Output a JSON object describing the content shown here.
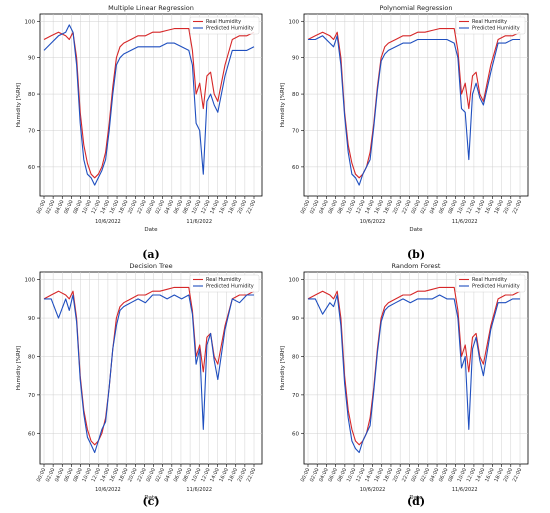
{
  "colors": {
    "real": "#d62728",
    "pred": "#1f4fbf",
    "grid": "#d0d0d0"
  },
  "chart_data": [
    {
      "type": "line",
      "caption": "(a)",
      "title": "Multiple Linear Regression",
      "xlabel": "Date",
      "ylabel": "Humidity [%RH]",
      "ylim": [
        52,
        102
      ],
      "yticks": [
        60,
        70,
        80,
        90,
        100
      ],
      "legend": "top-right",
      "grid": true,
      "xtick_labels": [
        "00:00",
        "02:00",
        "04:00",
        "06:00",
        "08:00",
        "10:00",
        "12:00",
        "14:00",
        "16:00",
        "18:00",
        "20:00",
        "22:00",
        "00:00",
        "02:00",
        "04:00",
        "06:00",
        "08:00",
        "10:00",
        "12:00",
        "14:00",
        "16:00",
        "18:00",
        "20:00",
        "22:00"
      ],
      "date_labels": [
        {
          "label": "10/6/2022",
          "index": 7
        },
        {
          "label": "11/6/2022",
          "index": 17
        }
      ],
      "x": [
        0,
        2,
        4,
        6,
        7,
        8,
        9,
        10,
        11,
        12,
        13,
        14,
        15,
        16,
        17,
        18,
        19,
        20,
        21,
        22,
        24,
        26,
        28,
        30,
        32,
        34,
        36,
        38,
        40,
        41,
        42,
        43,
        44,
        45,
        46,
        47,
        48,
        50,
        52,
        54,
        56,
        58
      ],
      "series": [
        {
          "name": "Real Humidity",
          "values": [
            95,
            96,
            97,
            96,
            95,
            97,
            90,
            75,
            66,
            61,
            58,
            57,
            58,
            60,
            64,
            72,
            82,
            90,
            93,
            94,
            95,
            96,
            96,
            97,
            97,
            97.5,
            98,
            98,
            98,
            92,
            80,
            83,
            76,
            85,
            86,
            80,
            78,
            88,
            95,
            96,
            96,
            97
          ]
        },
        {
          "name": "Predicted Humidity",
          "values": [
            92,
            94,
            96,
            97,
            99,
            97,
            88,
            72,
            62,
            58,
            57,
            55,
            57,
            59,
            62,
            70,
            80,
            88,
            90,
            91,
            92,
            93,
            93,
            93,
            93,
            94,
            94,
            93,
            92,
            88,
            72,
            70,
            58,
            78,
            80,
            77,
            75,
            85,
            92,
            92,
            92,
            93
          ]
        }
      ]
    },
    {
      "type": "line",
      "caption": "(b)",
      "title": "Polynomial Regression",
      "xlabel": "Date",
      "ylabel": "Humidity [%RH]",
      "ylim": [
        52,
        102
      ],
      "yticks": [
        60,
        70,
        80,
        90,
        100
      ],
      "legend": "top-right",
      "grid": true,
      "xtick_labels": [
        "00:00",
        "02:00",
        "04:00",
        "06:00",
        "08:00",
        "10:00",
        "12:00",
        "14:00",
        "16:00",
        "18:00",
        "20:00",
        "22:00",
        "00:00",
        "02:00",
        "04:00",
        "06:00",
        "08:00",
        "10:00",
        "12:00",
        "14:00",
        "16:00",
        "18:00",
        "20:00",
        "22:00"
      ],
      "date_labels": [
        {
          "label": "10/6/2022",
          "index": 7
        },
        {
          "label": "11/6/2022",
          "index": 17
        }
      ],
      "x": [
        0,
        2,
        4,
        6,
        7,
        8,
        9,
        10,
        11,
        12,
        13,
        14,
        15,
        16,
        17,
        18,
        19,
        20,
        21,
        22,
        24,
        26,
        28,
        30,
        32,
        34,
        36,
        38,
        40,
        41,
        42,
        43,
        44,
        45,
        46,
        47,
        48,
        50,
        52,
        54,
        56,
        58
      ],
      "series": [
        {
          "name": "Real Humidity",
          "values": [
            95,
            96,
            97,
            96,
            95,
            97,
            90,
            75,
            66,
            61,
            58,
            57,
            58,
            60,
            64,
            72,
            82,
            90,
            93,
            94,
            95,
            96,
            96,
            97,
            97,
            97.5,
            98,
            98,
            98,
            92,
            80,
            83,
            76,
            85,
            86,
            80,
            78,
            88,
            95,
            96,
            96,
            97
          ]
        },
        {
          "name": "Predicted Humidity",
          "values": [
            95,
            95,
            96,
            94,
            93,
            96,
            88,
            74,
            64,
            58,
            57,
            55,
            58,
            60,
            62,
            71,
            81,
            89,
            91,
            92,
            93,
            94,
            94,
            95,
            95,
            95,
            95,
            95,
            94,
            90,
            76,
            75,
            62,
            80,
            83,
            79,
            77,
            86,
            94,
            94,
            95,
            95
          ]
        }
      ]
    },
    {
      "type": "line",
      "caption": "(c)",
      "title": "Decision Tree",
      "xlabel": "Date",
      "ylabel": "Humidity [%RH]",
      "ylim": [
        52,
        102
      ],
      "yticks": [
        60,
        70,
        80,
        90,
        100
      ],
      "legend": "top-right",
      "grid": true,
      "xtick_labels": [
        "00:00",
        "02:00",
        "04:00",
        "06:00",
        "08:00",
        "10:00",
        "12:00",
        "14:00",
        "16:00",
        "18:00",
        "20:00",
        "22:00",
        "00:00",
        "02:00",
        "04:00",
        "06:00",
        "08:00",
        "10:00",
        "12:00",
        "14:00",
        "16:00",
        "18:00",
        "20:00",
        "22:00"
      ],
      "date_labels": [
        {
          "label": "10/6/2022",
          "index": 7
        },
        {
          "label": "11/6/2022",
          "index": 17
        }
      ],
      "x": [
        0,
        2,
        4,
        6,
        7,
        8,
        9,
        10,
        11,
        12,
        13,
        14,
        15,
        16,
        17,
        18,
        19,
        20,
        21,
        22,
        24,
        26,
        28,
        30,
        32,
        34,
        36,
        38,
        40,
        41,
        42,
        43,
        44,
        45,
        46,
        47,
        48,
        50,
        52,
        54,
        56,
        58
      ],
      "series": [
        {
          "name": "Real Humidity",
          "values": [
            95,
            96,
            97,
            96,
            95,
            97,
            90,
            75,
            66,
            61,
            58,
            57,
            58,
            60,
            64,
            72,
            82,
            90,
            93,
            94,
            95,
            96,
            96,
            97,
            97,
            97.5,
            98,
            98,
            98,
            92,
            80,
            83,
            76,
            85,
            86,
            80,
            78,
            88,
            95,
            96,
            96,
            97
          ]
        },
        {
          "name": "Predicted Humidity",
          "values": [
            95,
            95,
            90,
            95,
            92,
            96,
            89,
            74,
            65,
            59,
            57,
            55,
            58,
            61,
            63,
            72,
            82,
            88,
            92,
            93,
            94,
            95,
            94,
            96,
            96,
            95,
            96,
            95,
            96,
            91,
            78,
            82,
            61,
            83,
            86,
            79,
            74,
            87,
            95,
            94,
            96,
            96
          ]
        }
      ]
    },
    {
      "type": "line",
      "caption": "(d)",
      "title": "Random Forest",
      "xlabel": "Date",
      "ylabel": "Humidity [%RH]",
      "ylim": [
        52,
        102
      ],
      "yticks": [
        60,
        70,
        80,
        90,
        100
      ],
      "legend": "top-right",
      "grid": true,
      "xtick_labels": [
        "00:00",
        "02:00",
        "04:00",
        "06:00",
        "08:00",
        "10:00",
        "12:00",
        "14:00",
        "16:00",
        "18:00",
        "20:00",
        "22:00",
        "00:00",
        "02:00",
        "04:00",
        "06:00",
        "08:00",
        "10:00",
        "12:00",
        "14:00",
        "16:00",
        "18:00",
        "20:00",
        "22:00"
      ],
      "date_labels": [
        {
          "label": "10/6/2022",
          "index": 7
        },
        {
          "label": "11/6/2022",
          "index": 17
        }
      ],
      "x": [
        0,
        2,
        4,
        6,
        7,
        8,
        9,
        10,
        11,
        12,
        13,
        14,
        15,
        16,
        17,
        18,
        19,
        20,
        21,
        22,
        24,
        26,
        28,
        30,
        32,
        34,
        36,
        38,
        40,
        41,
        42,
        43,
        44,
        45,
        46,
        47,
        48,
        50,
        52,
        54,
        56,
        58
      ],
      "series": [
        {
          "name": "Real Humidity",
          "values": [
            95,
            96,
            97,
            96,
            95,
            97,
            90,
            75,
            66,
            61,
            58,
            57,
            58,
            60,
            64,
            72,
            82,
            90,
            93,
            94,
            95,
            96,
            96,
            97,
            97,
            97.5,
            98,
            98,
            98,
            92,
            80,
            83,
            76,
            85,
            86,
            80,
            78,
            88,
            95,
            96,
            96,
            97
          ]
        },
        {
          "name": "Predicted Humidity",
          "values": [
            95,
            95,
            91,
            94,
            93,
            96,
            88,
            73,
            64,
            58,
            56,
            55,
            58,
            60,
            62,
            71,
            81,
            89,
            92,
            93,
            94,
            95,
            94,
            95,
            95,
            95,
            96,
            95,
            95,
            90,
            77,
            80,
            61,
            82,
            85,
            79,
            75,
            87,
            94,
            94,
            95,
            95
          ]
        }
      ]
    }
  ]
}
